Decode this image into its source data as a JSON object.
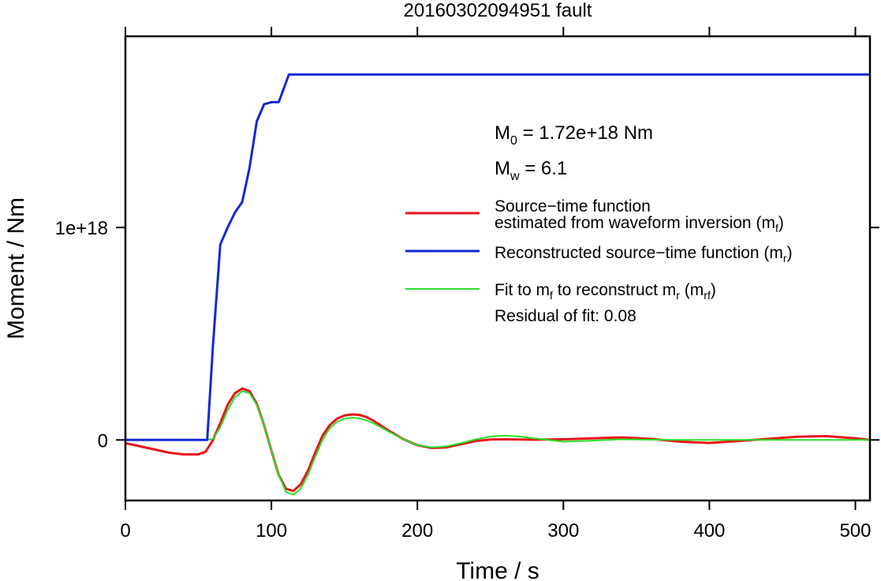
{
  "chart_data": {
    "type": "line",
    "title": "20160302094951 fault",
    "xlabel": "Time / s",
    "ylabel": "Moment / Nm",
    "xlim": [
      0,
      510
    ],
    "ylim": [
      -2.85e+17,
      1.9e+18
    ],
    "x_ticks": [
      {
        "value": 0,
        "label": "0"
      },
      {
        "value": 100,
        "label": "100"
      },
      {
        "value": 200,
        "label": "200"
      },
      {
        "value": 300,
        "label": "300"
      },
      {
        "value": 400,
        "label": "400"
      },
      {
        "value": 500,
        "label": "500"
      }
    ],
    "y_ticks": [
      {
        "value": 0,
        "label": "0"
      },
      {
        "value": 1e+18,
        "label": "1e+18"
      }
    ],
    "grid": false,
    "annotations": {
      "m0": {
        "base": "M",
        "sub": "0",
        "rest": " = 1.72e+18 Nm"
      },
      "mw": {
        "base": "M",
        "sub": "w",
        "rest": " = 6.1"
      },
      "residual": "Residual of fit: 0.08"
    },
    "legend": {
      "placement": "right",
      "entries": [
        {
          "series": "mf",
          "line1": "Source−time function",
          "line2_pre": "estimated from waveform inversion (m",
          "line2_sub": "f",
          "line2_post": ")"
        },
        {
          "series": "mr",
          "pre": "Reconstructed source−time function (m",
          "sub": "r",
          "post": ")"
        },
        {
          "series": "mrf",
          "pre": "Fit to m",
          "sub1": "f",
          "mid": " to reconstruct m",
          "sub2": "r",
          "mid2": " (m",
          "sub3": "rf",
          "post": ")"
        }
      ]
    },
    "series": [
      {
        "id": "mf",
        "color": "#e8141a",
        "x": [
          0,
          10,
          20,
          30,
          40,
          50,
          55,
          60,
          65,
          70,
          75,
          80,
          85,
          90,
          95,
          100,
          105,
          110,
          115,
          120,
          125,
          130,
          135,
          140,
          145,
          150,
          155,
          160,
          165,
          170,
          175,
          180,
          190,
          200,
          210,
          220,
          230,
          240,
          250,
          260,
          280,
          300,
          320,
          340,
          360,
          380,
          400,
          420,
          440,
          460,
          480,
          500,
          510
        ],
        "y": [
          -1.5e+16,
          -3e+16,
          -4.5e+16,
          -6e+16,
          -6.8e+16,
          -6.8e+16,
          -5.5e+16,
          0,
          8e+16,
          1.65e+17,
          2.2e+17,
          2.42e+17,
          2.3e+17,
          1.7e+17,
          7e+16,
          -5e+16,
          -1.65e+17,
          -2.3e+17,
          -2.4e+17,
          -2.1e+17,
          -1.45e+17,
          -6e+16,
          2e+16,
          7e+16,
          1e+17,
          1.15e+17,
          1.2e+17,
          1.18e+17,
          1.08e+17,
          9e+16,
          6.8e+16,
          4.5e+16,
          5000000000000000.0,
          -2.5e+16,
          -3.8e+16,
          -3.5e+16,
          -2e+16,
          -5000000000000000.0,
          2000000000000000.0,
          3000000000000000.0,
          1000000000000000.0,
          3000000000000000.0,
          8000000000000000.0,
          1.2e+16,
          5000000000000000.0,
          -8000000000000000.0,
          -1.4e+16,
          -5000000000000000.0,
          5000000000000000.0,
          1.5e+16,
          1.8e+16,
          8000000000000000.0,
          0
        ]
      },
      {
        "id": "mr",
        "color": "#1428d2",
        "x": [
          0,
          56,
          60,
          65,
          70,
          75,
          80,
          85,
          90,
          95,
          100,
          105,
          112,
          510
        ],
        "y": [
          0,
          0,
          4.5e+17,
          9.2e+17,
          1e+18,
          1.07e+18,
          1.12e+18,
          1.28e+18,
          1.5e+18,
          1.58e+18,
          1.59e+18,
          1.59e+18,
          1.72e+18,
          1.72e+18
        ]
      },
      {
        "id": "mrf",
        "color": "#28e028",
        "x": [
          0,
          50,
          55,
          60,
          65,
          70,
          75,
          80,
          85,
          90,
          95,
          100,
          105,
          110,
          115,
          120,
          125,
          130,
          135,
          140,
          145,
          150,
          155,
          160,
          165,
          170,
          175,
          180,
          190,
          200,
          210,
          220,
          230,
          240,
          250,
          260,
          270,
          280,
          300,
          320,
          340,
          360,
          380,
          400,
          420,
          440,
          460,
          480,
          510
        ],
        "y": [
          0,
          0,
          0,
          5000000000000000.0,
          6e+16,
          1.4e+17,
          2e+17,
          2.3e+17,
          2.2e+17,
          1.65e+17,
          7e+16,
          -5e+16,
          -1.65e+17,
          -2.45e+17,
          -2.58e+17,
          -2.3e+17,
          -1.65e+17,
          -8e+16,
          0,
          5.5e+16,
          8.5e+16,
          1e+17,
          1.05e+17,
          1.02e+17,
          9.2e+16,
          7.8e+16,
          6e+16,
          4e+16,
          5000000000000000.0,
          -2.5e+16,
          -3.5e+16,
          -3e+16,
          -1.5e+16,
          3000000000000000.0,
          1.6e+16,
          2e+16,
          1.6e+16,
          8000000000000000.0,
          -8000000000000000.0,
          -3000000000000000.0,
          3000000000000000.0,
          1000000000000000.0,
          0,
          0,
          0,
          0,
          0,
          0,
          0
        ]
      }
    ]
  }
}
